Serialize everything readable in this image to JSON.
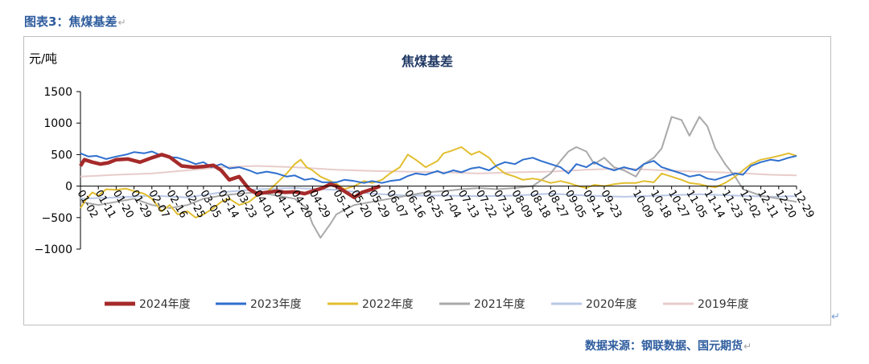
{
  "page": {
    "header_title": "图表3：焦煤基差",
    "source": "数据来源：钢联数据、国元期货",
    "return_mark": "↵"
  },
  "chart_data": {
    "type": "line",
    "title": "焦煤基差",
    "ylabel": "元/吨",
    "ylim": [
      -1000,
      1500
    ],
    "yticks": [
      -1000,
      -500,
      0,
      500,
      1000,
      1500
    ],
    "xlim": [
      "01-02",
      "12-29"
    ],
    "xticks": [
      "01-02",
      "01-11",
      "01-20",
      "01-29",
      "02-07",
      "02-16",
      "02-25",
      "03-05",
      "03-14",
      "03-23",
      "04-01",
      "04-11",
      "04-20",
      "04-29",
      "05-11",
      "05-20",
      "05-29",
      "06-07",
      "06-16",
      "06-25",
      "07-04",
      "07-13",
      "07-22",
      "07-31",
      "08-09",
      "08-18",
      "08-27",
      "09-05",
      "09-14",
      "09-23",
      "10-09",
      "10-18",
      "10-27",
      "11-05",
      "11-14",
      "11-23",
      "12-02",
      "12-11",
      "12-20",
      "12-29"
    ],
    "grid": false,
    "legend_position": "bottom",
    "series": [
      {
        "name": "2024年度",
        "color": "#a52a2a",
        "points": [
          [
            "01-02",
            320
          ],
          [
            "01-04",
            420
          ],
          [
            "01-08",
            380
          ],
          [
            "01-12",
            350
          ],
          [
            "01-16",
            370
          ],
          [
            "01-20",
            420
          ],
          [
            "01-26",
            430
          ],
          [
            "02-01",
            380
          ],
          [
            "02-07",
            450
          ],
          [
            "02-12",
            500
          ],
          [
            "02-16",
            460
          ],
          [
            "02-22",
            320
          ],
          [
            "02-28",
            300
          ],
          [
            "03-05",
            310
          ],
          [
            "03-10",
            330
          ],
          [
            "03-14",
            250
          ],
          [
            "03-18",
            100
          ],
          [
            "03-23",
            150
          ],
          [
            "03-28",
            -50
          ],
          [
            "04-01",
            -120
          ],
          [
            "04-06",
            -100
          ],
          [
            "04-11",
            -80
          ],
          [
            "04-15",
            -100
          ],
          [
            "04-20",
            -90
          ],
          [
            "04-25",
            -120
          ],
          [
            "04-29",
            -80
          ],
          [
            "05-04",
            -30
          ],
          [
            "05-08",
            30
          ],
          [
            "05-11",
            0
          ],
          [
            "05-15",
            -80
          ],
          [
            "05-20",
            -180
          ],
          [
            "05-24",
            -100
          ],
          [
            "05-29",
            -50
          ],
          [
            "06-02",
            0
          ]
        ]
      },
      {
        "name": "2023年度",
        "color": "#2f6fce",
        "points": [
          [
            "01-02",
            520
          ],
          [
            "01-06",
            470
          ],
          [
            "01-10",
            480
          ],
          [
            "01-15",
            430
          ],
          [
            "01-20",
            470
          ],
          [
            "01-25",
            500
          ],
          [
            "01-29",
            540
          ],
          [
            "02-03",
            520
          ],
          [
            "02-07",
            550
          ],
          [
            "02-12",
            480
          ],
          [
            "02-16",
            460
          ],
          [
            "02-20",
            450
          ],
          [
            "02-25",
            400
          ],
          [
            "03-01",
            350
          ],
          [
            "03-05",
            380
          ],
          [
            "03-09",
            300
          ],
          [
            "03-14",
            350
          ],
          [
            "03-18",
            280
          ],
          [
            "03-23",
            300
          ],
          [
            "03-28",
            250
          ],
          [
            "04-01",
            200
          ],
          [
            "04-06",
            230
          ],
          [
            "04-11",
            200
          ],
          [
            "04-16",
            150
          ],
          [
            "04-20",
            170
          ],
          [
            "04-25",
            100
          ],
          [
            "04-29",
            120
          ],
          [
            "05-04",
            60
          ],
          [
            "05-11",
            60
          ],
          [
            "05-15",
            100
          ],
          [
            "05-20",
            80
          ],
          [
            "05-25",
            50
          ],
          [
            "05-29",
            80
          ],
          [
            "06-03",
            50
          ],
          [
            "06-07",
            80
          ],
          [
            "06-12",
            100
          ],
          [
            "06-16",
            160
          ],
          [
            "06-20",
            200
          ],
          [
            "06-25",
            180
          ],
          [
            "07-01",
            240
          ],
          [
            "07-04",
            200
          ],
          [
            "07-09",
            250
          ],
          [
            "07-13",
            220
          ],
          [
            "07-18",
            280
          ],
          [
            "07-22",
            300
          ],
          [
            "07-27",
            250
          ],
          [
            "07-31",
            330
          ],
          [
            "08-04",
            380
          ],
          [
            "08-09",
            350
          ],
          [
            "08-13",
            420
          ],
          [
            "08-18",
            450
          ],
          [
            "08-22",
            400
          ],
          [
            "08-27",
            350
          ],
          [
            "09-01",
            300
          ],
          [
            "09-05",
            200
          ],
          [
            "09-09",
            350
          ],
          [
            "09-14",
            300
          ],
          [
            "09-18",
            380
          ],
          [
            "09-23",
            300
          ],
          [
            "09-28",
            250
          ],
          [
            "10-03",
            300
          ],
          [
            "10-09",
            250
          ],
          [
            "10-13",
            350
          ],
          [
            "10-18",
            400
          ],
          [
            "10-22",
            300
          ],
          [
            "10-27",
            250
          ],
          [
            "11-01",
            200
          ],
          [
            "11-05",
            150
          ],
          [
            "11-10",
            180
          ],
          [
            "11-14",
            120
          ],
          [
            "11-18",
            100
          ],
          [
            "11-23",
            150
          ],
          [
            "11-28",
            200
          ],
          [
            "12-02",
            180
          ],
          [
            "12-06",
            320
          ],
          [
            "12-11",
            380
          ],
          [
            "12-16",
            420
          ],
          [
            "12-20",
            400
          ],
          [
            "12-25",
            450
          ],
          [
            "12-29",
            480
          ]
        ]
      },
      {
        "name": "2022年度",
        "color": "#e2be30",
        "points": [
          [
            "01-02",
            -350
          ],
          [
            "01-05",
            -200
          ],
          [
            "01-08",
            -100
          ],
          [
            "01-11",
            -150
          ],
          [
            "01-15",
            -50
          ],
          [
            "01-20",
            -60
          ],
          [
            "01-25",
            -40
          ],
          [
            "01-29",
            -80
          ],
          [
            "02-03",
            -120
          ],
          [
            "02-07",
            -200
          ],
          [
            "02-12",
            -400
          ],
          [
            "02-16",
            -300
          ],
          [
            "02-20",
            -450
          ],
          [
            "02-25",
            -400
          ],
          [
            "03-01",
            -500
          ],
          [
            "03-05",
            -450
          ],
          [
            "03-10",
            -350
          ],
          [
            "03-14",
            -250
          ],
          [
            "03-18",
            -200
          ],
          [
            "03-23",
            -300
          ],
          [
            "03-28",
            -250
          ],
          [
            "04-01",
            -150
          ],
          [
            "04-06",
            -100
          ],
          [
            "04-11",
            50
          ],
          [
            "04-16",
            200
          ],
          [
            "04-20",
            350
          ],
          [
            "04-23",
            420
          ],
          [
            "04-26",
            300
          ],
          [
            "04-29",
            250
          ],
          [
            "05-03",
            150
          ],
          [
            "05-08",
            80
          ],
          [
            "05-11",
            40
          ],
          [
            "05-15",
            -50
          ],
          [
            "05-20",
            0
          ],
          [
            "05-25",
            80
          ],
          [
            "05-29",
            50
          ],
          [
            "06-03",
            100
          ],
          [
            "06-07",
            200
          ],
          [
            "06-12",
            300
          ],
          [
            "06-16",
            500
          ],
          [
            "06-20",
            420
          ],
          [
            "06-25",
            300
          ],
          [
            "07-01",
            400
          ],
          [
            "07-04",
            520
          ],
          [
            "07-08",
            560
          ],
          [
            "07-13",
            620
          ],
          [
            "07-18",
            500
          ],
          [
            "07-22",
            550
          ],
          [
            "07-27",
            450
          ],
          [
            "07-31",
            300
          ],
          [
            "08-04",
            200
          ],
          [
            "08-09",
            150
          ],
          [
            "08-13",
            100
          ],
          [
            "08-18",
            120
          ],
          [
            "08-22",
            100
          ],
          [
            "08-27",
            50
          ],
          [
            "09-01",
            80
          ],
          [
            "09-05",
            50
          ],
          [
            "09-10",
            0
          ],
          [
            "09-14",
            -30
          ],
          [
            "09-18",
            20
          ],
          [
            "09-23",
            0
          ],
          [
            "09-28",
            30
          ],
          [
            "10-03",
            50
          ],
          [
            "10-09",
            50
          ],
          [
            "10-13",
            80
          ],
          [
            "10-18",
            60
          ],
          [
            "10-22",
            200
          ],
          [
            "10-27",
            150
          ],
          [
            "11-01",
            100
          ],
          [
            "11-05",
            50
          ],
          [
            "11-10",
            30
          ],
          [
            "11-14",
            0
          ],
          [
            "11-18",
            -20
          ],
          [
            "11-23",
            50
          ],
          [
            "11-28",
            150
          ],
          [
            "12-02",
            250
          ],
          [
            "12-06",
            350
          ],
          [
            "12-11",
            420
          ],
          [
            "12-16",
            450
          ],
          [
            "12-20",
            480
          ],
          [
            "12-25",
            520
          ],
          [
            "12-29",
            480
          ]
        ]
      },
      {
        "name": "2021年度",
        "color": "#a9a9a9",
        "points": [
          [
            "01-02",
            -250
          ],
          [
            "01-11",
            -300
          ],
          [
            "01-20",
            -250
          ],
          [
            "01-29",
            -200
          ],
          [
            "02-07",
            -300
          ],
          [
            "02-16",
            -350
          ],
          [
            "02-25",
            -300
          ],
          [
            "03-05",
            -200
          ],
          [
            "03-14",
            -150
          ],
          [
            "03-23",
            -120
          ],
          [
            "04-01",
            -100
          ],
          [
            "04-11",
            -150
          ],
          [
            "04-20",
            -200
          ],
          [
            "04-26",
            -350
          ],
          [
            "04-29",
            -600
          ],
          [
            "05-03",
            -820
          ],
          [
            "05-08",
            -600
          ],
          [
            "05-11",
            -450
          ],
          [
            "05-15",
            -380
          ],
          [
            "05-20",
            -300
          ],
          [
            "05-29",
            -250
          ],
          [
            "06-07",
            -200
          ],
          [
            "06-16",
            -150
          ],
          [
            "06-25",
            -100
          ],
          [
            "07-04",
            -80
          ],
          [
            "07-13",
            -50
          ],
          [
            "07-22",
            -30
          ],
          [
            "07-31",
            -50
          ],
          [
            "08-09",
            -30
          ],
          [
            "08-18",
            0
          ],
          [
            "08-27",
            200
          ],
          [
            "09-01",
            400
          ],
          [
            "09-05",
            550
          ],
          [
            "09-09",
            620
          ],
          [
            "09-14",
            550
          ],
          [
            "09-18",
            350
          ],
          [
            "09-23",
            450
          ],
          [
            "09-28",
            300
          ],
          [
            "10-03",
            250
          ],
          [
            "10-09",
            150
          ],
          [
            "10-13",
            350
          ],
          [
            "10-18",
            450
          ],
          [
            "10-22",
            600
          ],
          [
            "10-27",
            1100
          ],
          [
            "11-01",
            1050
          ],
          [
            "11-05",
            800
          ],
          [
            "11-10",
            1100
          ],
          [
            "11-14",
            950
          ],
          [
            "11-18",
            600
          ],
          [
            "11-23",
            350
          ],
          [
            "11-28",
            150
          ],
          [
            "12-02",
            -50
          ],
          [
            "12-11",
            -150
          ],
          [
            "12-20",
            -200
          ],
          [
            "12-29",
            -250
          ]
        ]
      },
      {
        "name": "2020年度",
        "color": "#b9c8e6",
        "points": [
          [
            "01-02",
            -200
          ],
          [
            "01-20",
            -180
          ],
          [
            "02-07",
            -150
          ],
          [
            "02-25",
            -180
          ],
          [
            "03-14",
            -100
          ],
          [
            "04-01",
            -50
          ],
          [
            "04-20",
            -30
          ],
          [
            "05-11",
            -60
          ],
          [
            "05-29",
            -120
          ],
          [
            "06-16",
            -150
          ],
          [
            "07-04",
            -150
          ],
          [
            "07-22",
            -160
          ],
          [
            "08-09",
            -150
          ],
          [
            "08-27",
            -120
          ],
          [
            "09-14",
            -150
          ],
          [
            "10-03",
            -170
          ],
          [
            "10-22",
            -150
          ],
          [
            "11-10",
            -130
          ],
          [
            "11-28",
            -150
          ],
          [
            "12-16",
            -170
          ],
          [
            "12-29",
            -160
          ]
        ]
      },
      {
        "name": "2019年度",
        "color": "#e8cccc",
        "points": [
          [
            "01-02",
            150
          ],
          [
            "01-20",
            180
          ],
          [
            "02-07",
            200
          ],
          [
            "02-25",
            250
          ],
          [
            "03-14",
            300
          ],
          [
            "04-01",
            320
          ],
          [
            "04-20",
            300
          ],
          [
            "05-11",
            260
          ],
          [
            "05-29",
            240
          ],
          [
            "06-16",
            230
          ],
          [
            "07-04",
            220
          ],
          [
            "07-22",
            200
          ],
          [
            "08-09",
            220
          ],
          [
            "08-27",
            230
          ],
          [
            "09-14",
            260
          ],
          [
            "10-03",
            280
          ],
          [
            "10-22",
            250
          ],
          [
            "11-10",
            230
          ],
          [
            "11-28",
            210
          ],
          [
            "12-16",
            180
          ],
          [
            "12-29",
            170
          ]
        ]
      }
    ]
  }
}
